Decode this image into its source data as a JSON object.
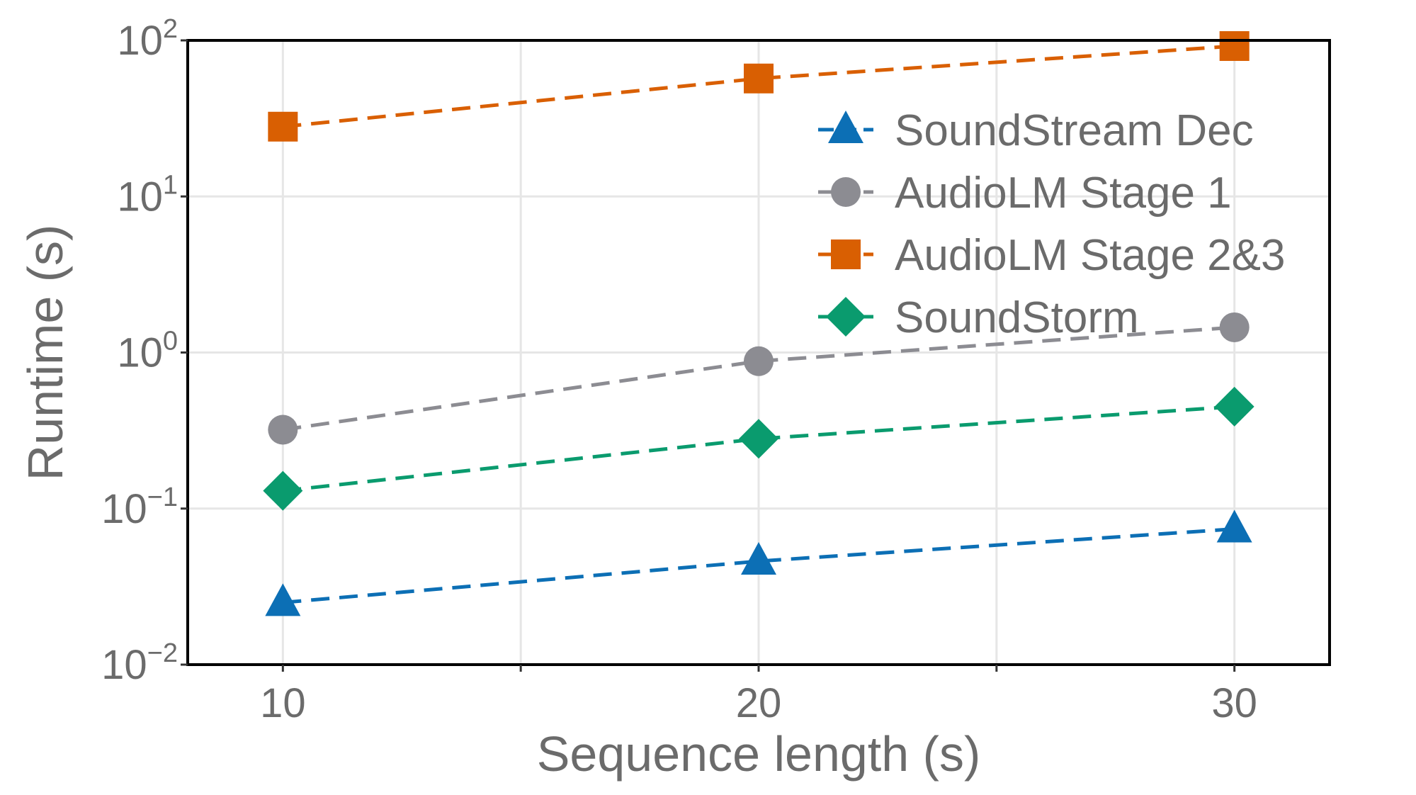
{
  "chart_data": {
    "type": "line",
    "x": [
      10,
      20,
      30
    ],
    "xticks": [
      "10",
      "20",
      "30"
    ],
    "xlabel": "Sequence length (s)",
    "ylabel": "Runtime (s)",
    "yscale": "log",
    "xlim": [
      8,
      32
    ],
    "ylim": [
      0.01,
      100
    ],
    "yticks": [
      {
        "base": "10",
        "exp": "−2",
        "value": 0.01
      },
      {
        "base": "10",
        "exp": "−1",
        "value": 0.1
      },
      {
        "base": "10",
        "exp": "0",
        "value": 1
      },
      {
        "base": "10",
        "exp": "1",
        "value": 10
      },
      {
        "base": "10",
        "exp": "2",
        "value": 100
      }
    ],
    "grid": true,
    "legend_position": "top-right",
    "series": [
      {
        "name": "SoundStream Dec",
        "values": [
          0.025,
          0.046,
          0.074
        ],
        "color": "#0c6fb5",
        "marker": "triangle"
      },
      {
        "name": "AudioLM Stage 1",
        "values": [
          0.32,
          0.88,
          1.45
        ],
        "color": "#8c8c92",
        "marker": "circle"
      },
      {
        "name": "AudioLM Stage 2&3",
        "values": [
          28,
          57,
          92
        ],
        "color": "#d95f02",
        "marker": "square"
      },
      {
        "name": "SoundStorm",
        "values": [
          0.13,
          0.28,
          0.45
        ],
        "color": "#0a9b6e",
        "marker": "diamond"
      }
    ]
  }
}
